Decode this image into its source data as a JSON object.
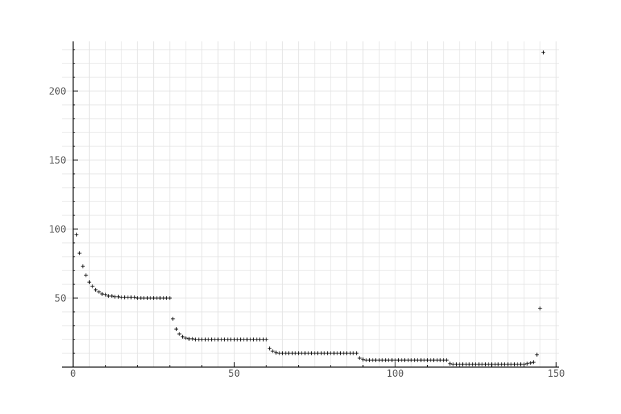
{
  "chart_data": {
    "type": "scatter",
    "title": "",
    "xlabel": "",
    "ylabel": "",
    "marker": "+",
    "grid": true,
    "colors": {
      "marker": "#000000",
      "axis": "#000000",
      "grid": "#e4e4e4",
      "tick_label": "#555555",
      "plot_background": "#ffffff"
    },
    "xlim": [
      -3,
      150
    ],
    "ylim": [
      0,
      233
    ],
    "x_ticks": [
      0,
      50,
      100,
      150
    ],
    "x_tick_labels": [
      "0",
      "50",
      "100",
      "150"
    ],
    "y_ticks": [
      50,
      100,
      150,
      200
    ],
    "y_tick_labels": [
      "50",
      "100",
      "150",
      "200"
    ],
    "series": [
      {
        "x": [
          1,
          2,
          3,
          4,
          5,
          6,
          7,
          8,
          9,
          10,
          11,
          12,
          13,
          14,
          15,
          16,
          17,
          18,
          19,
          20,
          21,
          22,
          23,
          24,
          25,
          26,
          27,
          28,
          29,
          30,
          31,
          32,
          33,
          34,
          35,
          36,
          37,
          38,
          39,
          40,
          41,
          42,
          43,
          44,
          45,
          46,
          47,
          48,
          49,
          50,
          51,
          52,
          53,
          54,
          55,
          56,
          57,
          58,
          59,
          60,
          61,
          62,
          63,
          64,
          65,
          66,
          67,
          68,
          69,
          70,
          71,
          72,
          73,
          74,
          75,
          76,
          77,
          78,
          79,
          80,
          81,
          82,
          83,
          84,
          85,
          86,
          87,
          88,
          89,
          90,
          91,
          92,
          93,
          94,
          95,
          96,
          97,
          98,
          99,
          100,
          101,
          102,
          103,
          104,
          105,
          106,
          107,
          108,
          109,
          110,
          111,
          112,
          113,
          114,
          115,
          116,
          117,
          118,
          119,
          120,
          121,
          122,
          123,
          124,
          125,
          126,
          127,
          128,
          129,
          130,
          131,
          132,
          133,
          134,
          135,
          136,
          137,
          138,
          139,
          140,
          141,
          142,
          143,
          144,
          145,
          146
        ],
        "y": [
          96,
          82.5,
          73,
          66.5,
          61.5,
          58.5,
          56,
          54.5,
          53,
          52.5,
          51.5,
          51.5,
          51,
          51,
          50.5,
          50.5,
          50.5,
          50.5,
          50.5,
          50,
          50,
          50,
          50,
          50,
          50,
          50,
          50,
          50,
          50,
          50,
          35,
          27.5,
          24,
          22,
          21,
          20.5,
          20.5,
          20,
          20,
          20,
          20,
          20,
          20,
          20,
          20,
          20,
          20,
          20,
          20,
          20,
          20,
          20,
          20,
          20,
          20,
          20,
          20,
          20,
          20,
          20,
          13.5,
          11.5,
          10.5,
          10,
          10,
          10,
          10,
          10,
          10,
          10,
          10,
          10,
          10,
          10,
          10,
          10,
          10,
          10,
          10,
          10,
          10,
          10,
          10,
          10,
          10,
          10,
          10,
          10,
          6.5,
          5.5,
          5,
          5,
          5,
          5,
          5,
          5,
          5,
          5,
          5,
          5,
          5,
          5,
          5,
          5,
          5,
          5,
          5,
          5,
          5,
          5,
          5,
          5,
          5,
          5,
          5,
          5,
          2.5,
          2,
          2,
          2,
          2,
          2,
          2,
          2,
          2,
          2,
          2,
          2,
          2,
          2,
          2,
          2,
          2,
          2,
          2,
          2,
          2,
          2,
          2,
          2,
          2.5,
          3,
          3.5,
          9,
          42.5,
          228
        ]
      }
    ]
  }
}
